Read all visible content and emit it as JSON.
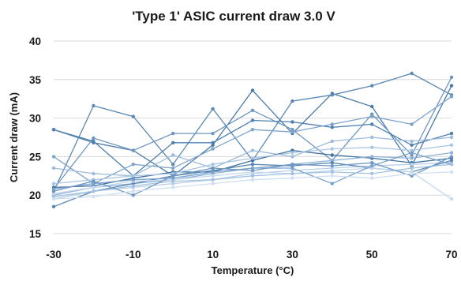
{
  "chart_data": {
    "type": "line",
    "title": "'Type 1' ASIC current draw 3.0 V",
    "xlabel": "Temperature (°C)",
    "ylabel": "Current draw (mA)",
    "xlim": [
      -30,
      70
    ],
    "ylim": [
      15,
      40
    ],
    "x_ticks": [
      -30,
      -10,
      10,
      30,
      50,
      70
    ],
    "y_ticks": [
      15,
      20,
      25,
      30,
      35,
      40
    ],
    "grid": "horizontal",
    "legend": "none",
    "x": [
      -30,
      -20,
      -10,
      0,
      10,
      20,
      30,
      40,
      50,
      60,
      70
    ],
    "series": [
      {
        "color": "#4a7aa8",
        "values": [
          28.5,
          26.8,
          25.8,
          22.5,
          26.5,
          33.6,
          28.0,
          33.2,
          31.5,
          23.8,
          34.2
        ]
      },
      {
        "color": "#5b88b5",
        "values": [
          20.5,
          31.6,
          30.2,
          24.0,
          31.2,
          24.5,
          32.2,
          33.0,
          34.2,
          35.8,
          33.0
        ]
      },
      {
        "color": "#6d97c2",
        "values": [
          20.8,
          27.4,
          25.8,
          28.0,
          28.0,
          31.0,
          28.5,
          24.5,
          30.5,
          25.2,
          35.3
        ]
      },
      {
        "color": "#4f80b0",
        "values": [
          28.5,
          27.0,
          22.5,
          26.8,
          26.8,
          29.7,
          29.5,
          28.8,
          29.2,
          26.5,
          28.0
        ]
      },
      {
        "color": "#7ea4cc",
        "values": [
          25.0,
          21.5,
          24.0,
          23.5,
          26.0,
          28.5,
          28.2,
          29.2,
          30.2,
          29.2,
          32.8
        ]
      },
      {
        "color": "#9dbbdc",
        "values": [
          23.5,
          22.8,
          22.5,
          25.2,
          23.5,
          25.8,
          25.0,
          27.0,
          27.5,
          27.0,
          27.5
        ]
      },
      {
        "color": "#3d6f9f",
        "values": [
          21.0,
          21.2,
          22.2,
          23.0,
          23.0,
          24.5,
          25.8,
          25.2,
          24.8,
          24.2,
          24.8
        ]
      },
      {
        "color": "#aac6e4",
        "values": [
          21.5,
          22.0,
          22.5,
          22.8,
          24.0,
          24.8,
          25.5,
          26.0,
          26.2,
          25.8,
          26.5
        ]
      },
      {
        "color": "#8fb2d8",
        "values": [
          20.0,
          21.0,
          21.5,
          22.0,
          22.8,
          23.5,
          24.0,
          24.5,
          25.0,
          24.8,
          25.5
        ]
      },
      {
        "color": "#b6cfe9",
        "values": [
          19.5,
          20.5,
          21.0,
          21.5,
          22.0,
          22.8,
          23.2,
          23.5,
          23.8,
          24.0,
          24.2
        ]
      },
      {
        "color": "#5a86b2",
        "values": [
          18.5,
          20.5,
          21.5,
          22.5,
          23.2,
          24.0,
          23.8,
          24.2,
          23.5,
          23.0,
          24.5
        ]
      },
      {
        "color": "#c5d9ef",
        "values": [
          20.2,
          21.0,
          21.8,
          22.0,
          22.5,
          23.0,
          22.8,
          23.2,
          23.5,
          23.0,
          19.5
        ]
      },
      {
        "color": "#7ba2ca",
        "values": [
          20.8,
          21.5,
          22.0,
          22.2,
          23.0,
          23.5,
          23.5,
          21.5,
          23.8,
          25.5,
          24.0
        ]
      },
      {
        "color": "#a3c1e1",
        "values": [
          19.8,
          20.5,
          21.2,
          21.8,
          22.0,
          22.5,
          22.8,
          23.0,
          22.8,
          23.5,
          24.0
        ]
      },
      {
        "color": "#6f99c4",
        "values": [
          20.5,
          21.8,
          20.0,
          22.5,
          23.5,
          23.2,
          24.0,
          23.8,
          24.2,
          22.5,
          25.0
        ]
      },
      {
        "color": "#d0e0f2",
        "values": [
          19.5,
          19.8,
          20.5,
          21.0,
          21.5,
          22.0,
          22.2,
          22.5,
          22.2,
          22.8,
          23.0
        ]
      }
    ]
  }
}
